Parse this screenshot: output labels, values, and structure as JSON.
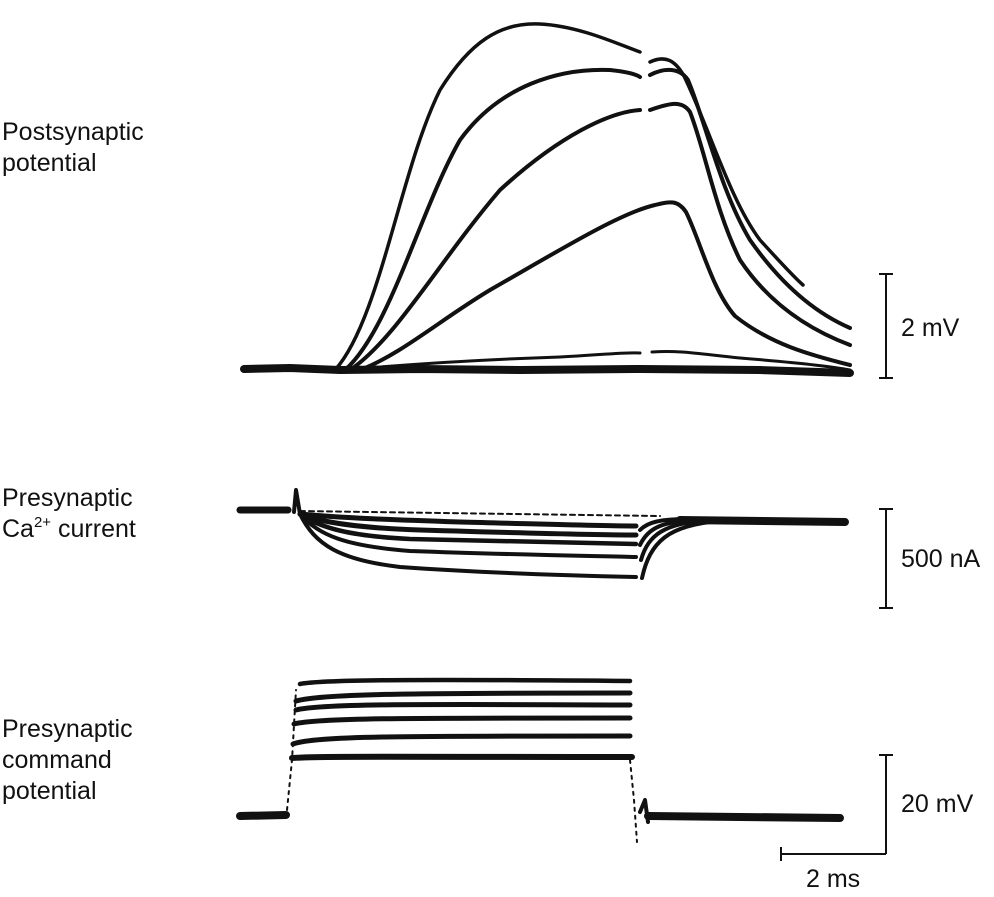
{
  "labels": {
    "postsynaptic_line1": "Postsynaptic",
    "postsynaptic_line2": "potential",
    "presynaptic_ca_line1": "Presynaptic",
    "presynaptic_ca_line2_prefix": "Ca",
    "presynaptic_ca_line2_sup": "2+",
    "presynaptic_ca_line2_suffix": " current",
    "command_line1": "Presynaptic",
    "command_line2": "command",
    "command_line3": "potential"
  },
  "scale_bars": {
    "postsynaptic": "2 mV",
    "current": "500 nA",
    "command": "20 mV",
    "time": "2 ms"
  },
  "colors": {
    "trace": "#111111",
    "background": "#ffffff"
  }
}
